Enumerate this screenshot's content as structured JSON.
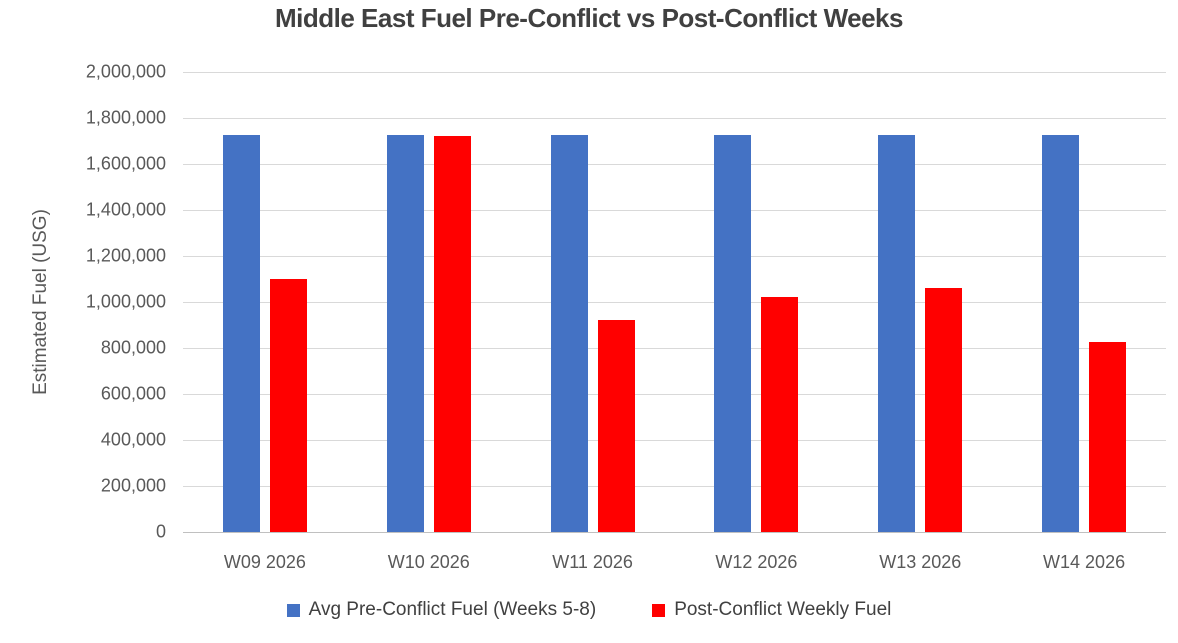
{
  "colors": {
    "background": "#FFFFFF",
    "title_text": "#404040",
    "axis_text": "#595959",
    "gridline": "#D9D9D9",
    "pre_conflict_blue": "#4472C4",
    "post_conflict_red": "#FF0000"
  },
  "chart_data": {
    "type": "bar",
    "title": "Middle East Fuel Pre-Conflict vs Post-Conflict Weeks",
    "xlabel": "",
    "ylabel": "Estimated Fuel (USG)",
    "categories": [
      "W09 2026",
      "W10 2026",
      "W11 2026",
      "W12 2026",
      "W13 2026",
      "W14 2026"
    ],
    "series": [
      {
        "name": "Avg Pre-Conflict Fuel (Weeks 5-8)",
        "color": "#4472C4",
        "values": [
          1725000,
          1725000,
          1725000,
          1725000,
          1725000,
          1725000
        ]
      },
      {
        "name": "Post-Conflict Weekly Fuel",
        "color": "#FF0000",
        "values": [
          1100000,
          1720000,
          920000,
          1020000,
          1060000,
          825000
        ]
      }
    ],
    "ylim": [
      0,
      2000000
    ],
    "ytick_interval": 200000,
    "ytick_labels": [
      "0",
      "200,000",
      "400,000",
      "600,000",
      "800,000",
      "1,000,000",
      "1,200,000",
      "1,400,000",
      "1,600,000",
      "1,800,000",
      "2,000,000"
    ],
    "grid": true,
    "legend_position": "bottom"
  }
}
